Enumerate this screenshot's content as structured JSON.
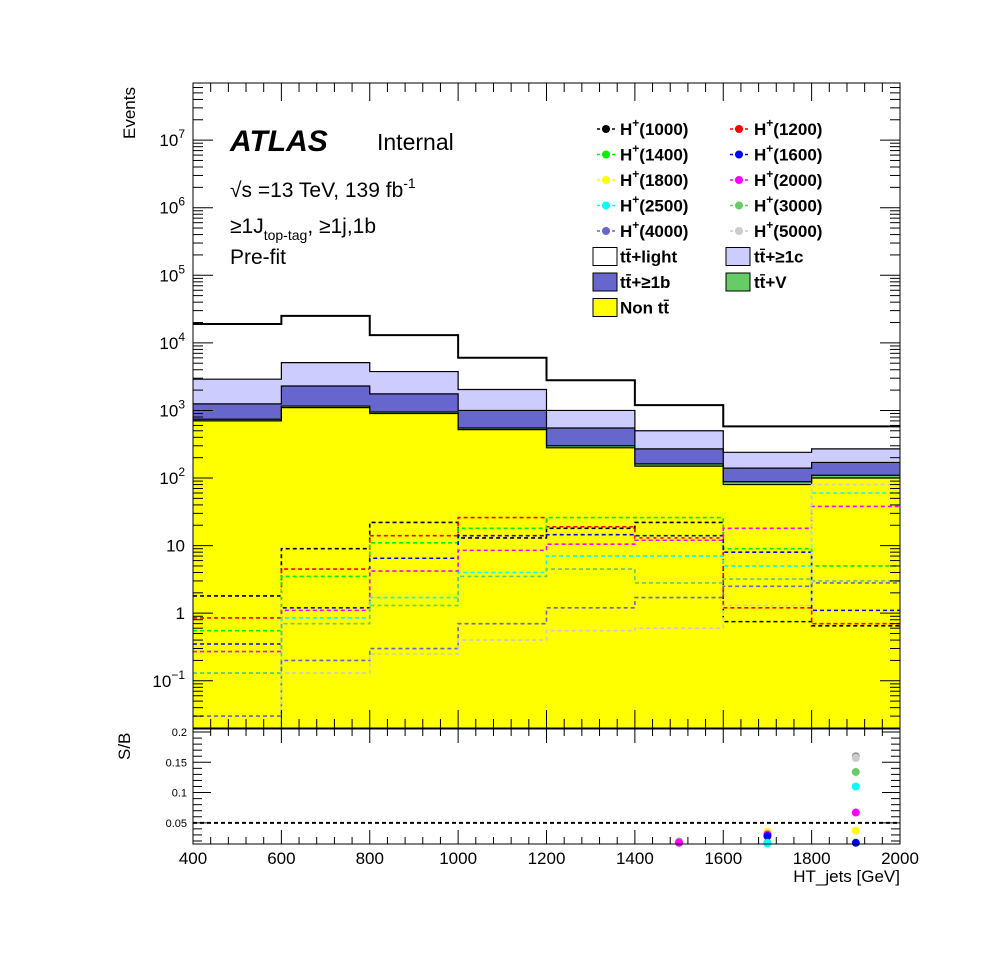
{
  "labels": {
    "atlas": "ATLAS",
    "internal": "Internal",
    "energy": "√s =13 TeV, 139 fb",
    "energy_sup": "-1",
    "region_a": "≥1J",
    "region_sub": "top-tag",
    "region_b": ", ≥1j,1b",
    "prefit": "Pre-fit"
  },
  "chart_data": [
    {
      "type": "bar",
      "subtype": "stacked histogram with overlaid signal lines",
      "ylabel": "Events",
      "yscale": "log",
      "ylim": [
        0.02,
        70000000
      ],
      "xlim": [
        400,
        2000
      ],
      "y_tick_labels": [
        {
          "v": 0.1,
          "b": "10",
          "e": "−1"
        },
        {
          "v": 1,
          "b": "1",
          "e": ""
        },
        {
          "v": 10,
          "b": "10",
          "e": ""
        },
        {
          "v": 100,
          "b": "10",
          "e": "2"
        },
        {
          "v": 1000,
          "b": "10",
          "e": "3"
        },
        {
          "v": 10000,
          "b": "10",
          "e": "4"
        },
        {
          "v": 100000,
          "b": "10",
          "e": "5"
        },
        {
          "v": 1000000,
          "b": "10",
          "e": "6"
        },
        {
          "v": 10000000,
          "b": "10",
          "e": "7"
        }
      ],
      "bin_edges": [
        400,
        600,
        800,
        1000,
        1200,
        1400,
        1600,
        1800,
        2000
      ],
      "stack": [
        {
          "name": "Non tt̄",
          "color": "#ffff00",
          "values": [
            700,
            1100,
            900,
            520,
            280,
            150,
            80,
            100
          ]
        },
        {
          "name": "tt̄+V",
          "color": "#66cc66",
          "values": [
            40,
            60,
            50,
            30,
            20,
            12,
            8,
            10
          ]
        },
        {
          "name": "tt̄+≥1b",
          "color": "#6666cc",
          "values": [
            510,
            1140,
            810,
            450,
            250,
            108,
            52,
            60
          ]
        },
        {
          "name": "tt̄+≥1c",
          "color": "#ccccff",
          "values": [
            1650,
            2800,
            2000,
            1040,
            450,
            230,
            100,
            100
          ]
        },
        {
          "name": "tt̄+light",
          "color": "#ffffff",
          "values": [
            16100,
            20000,
            9240,
            3980,
            1800,
            700,
            340,
            310
          ]
        }
      ],
      "stack_totals_ref": [
        19000,
        25000,
        13000,
        6000,
        2800,
        1200,
        580,
        580
      ],
      "signals": [
        {
          "name": "H+(1000)",
          "color": "#000000",
          "values": [
            1.8,
            9,
            22,
            13,
            18,
            22,
            0.75,
            0.65
          ]
        },
        {
          "name": "H+(1200)",
          "color": "#ff0000",
          "values": [
            0.85,
            4.5,
            14,
            26,
            19,
            13,
            1.2,
            0.7
          ]
        },
        {
          "name": "H+(1400)",
          "color": "#00ee00",
          "values": [
            0.55,
            3.5,
            11,
            18,
            26,
            26,
            9,
            5
          ]
        },
        {
          "name": "H+(1600)",
          "color": "#0000ff",
          "values": [
            0.35,
            1.2,
            6.5,
            14,
            14.5,
            14,
            8,
            1.1
          ]
        },
        {
          "name": "H+(1800)",
          "color": "#ffff00",
          "values": [
            0.3,
            2.2,
            6,
            9,
            11,
            13,
            12,
            38
          ]
        },
        {
          "name": "H+(2000)",
          "color": "#ff00ff",
          "values": [
            0.27,
            1.1,
            4.2,
            8.5,
            10.5,
            12,
            18,
            38
          ]
        },
        {
          "name": "H+(2500)",
          "color": "#00ffff",
          "values": [
            0.13,
            0.85,
            1.7,
            4,
            7,
            7,
            5,
            60
          ]
        },
        {
          "name": "H+(3000)",
          "color": "#66cc66",
          "values": [
            0.13,
            0.7,
            1.3,
            3.5,
            4.5,
            2.8,
            3.2,
            3
          ]
        },
        {
          "name": "H+(4000)",
          "color": "#6666cc",
          "values": [
            0.03,
            0.2,
            0.3,
            0.7,
            1.2,
            1.7,
            2.5,
            2.8
          ]
        },
        {
          "name": "H+(5000)",
          "color": "#cccccc",
          "values": [
            0.02,
            0.13,
            0.25,
            0.4,
            0.55,
            0.6,
            1.3,
            80
          ]
        }
      ]
    },
    {
      "type": "scatter",
      "ylabel": "S/B",
      "xlabel": "HT_jets [GeV]",
      "ylim": [
        0.015,
        0.205
      ],
      "xlim": [
        400,
        2000
      ],
      "x_ticks": [
        400,
        600,
        800,
        1000,
        1200,
        1400,
        1600,
        1800,
        2000
      ],
      "y_ticks": [
        0.05,
        0.1,
        0.15,
        0.2
      ],
      "reference_line": 0.05,
      "points": [
        {
          "x": 1500,
          "y": 0.019,
          "color": "#999999"
        },
        {
          "x": 1500,
          "y": 0.017,
          "color": "#ff00ff"
        },
        {
          "x": 1700,
          "y": 0.035,
          "color": "#ffff00"
        },
        {
          "x": 1700,
          "y": 0.031,
          "color": "#ff00ff"
        },
        {
          "x": 1700,
          "y": 0.028,
          "color": "#0000ff"
        },
        {
          "x": 1700,
          "y": 0.017,
          "color": "#00ee00"
        },
        {
          "x": 1700,
          "y": 0.016,
          "color": "#00ffff"
        },
        {
          "x": 1900,
          "y": 0.16,
          "color": "#999999"
        },
        {
          "x": 1900,
          "y": 0.157,
          "color": "#cccccc"
        },
        {
          "x": 1900,
          "y": 0.134,
          "color": "#66cc66"
        },
        {
          "x": 1900,
          "y": 0.11,
          "color": "#00ffff"
        },
        {
          "x": 1900,
          "y": 0.067,
          "color": "#ff00ff"
        },
        {
          "x": 1900,
          "y": 0.037,
          "color": "#ffff00"
        },
        {
          "x": 1900,
          "y": 0.017,
          "color": "#0000ff"
        }
      ]
    }
  ],
  "legend": {
    "signals": [
      {
        "base": "H",
        "sup": "+",
        "mass": "(1000)",
        "color": "#000000"
      },
      {
        "base": "H",
        "sup": "+",
        "mass": "(1200)",
        "color": "#ff0000"
      },
      {
        "base": "H",
        "sup": "+",
        "mass": "(1400)",
        "color": "#00ee00"
      },
      {
        "base": "H",
        "sup": "+",
        "mass": "(1600)",
        "color": "#0000ff"
      },
      {
        "base": "H",
        "sup": "+",
        "mass": "(1800)",
        "color": "#ffff00"
      },
      {
        "base": "H",
        "sup": "+",
        "mass": "(2000)",
        "color": "#ff00ff"
      },
      {
        "base": "H",
        "sup": "+",
        "mass": "(2500)",
        "color": "#00ffff"
      },
      {
        "base": "H",
        "sup": "+",
        "mass": "(3000)",
        "color": "#66cc66"
      },
      {
        "base": "H",
        "sup": "+",
        "mass": "(4000)",
        "color": "#6666cc"
      },
      {
        "base": "H",
        "sup": "+",
        "mass": "(5000)",
        "color": "#cccccc"
      }
    ],
    "backgrounds": [
      {
        "label": "tt̄+light",
        "color": "#ffffff"
      },
      {
        "label": "tt̄+≥1c",
        "color": "#ccccff"
      },
      {
        "label": "tt̄+≥1b",
        "color": "#6666cc"
      },
      {
        "label": "tt̄+V",
        "color": "#66cc66"
      },
      {
        "label": "Non tt̄",
        "color": "#ffff00"
      }
    ]
  }
}
